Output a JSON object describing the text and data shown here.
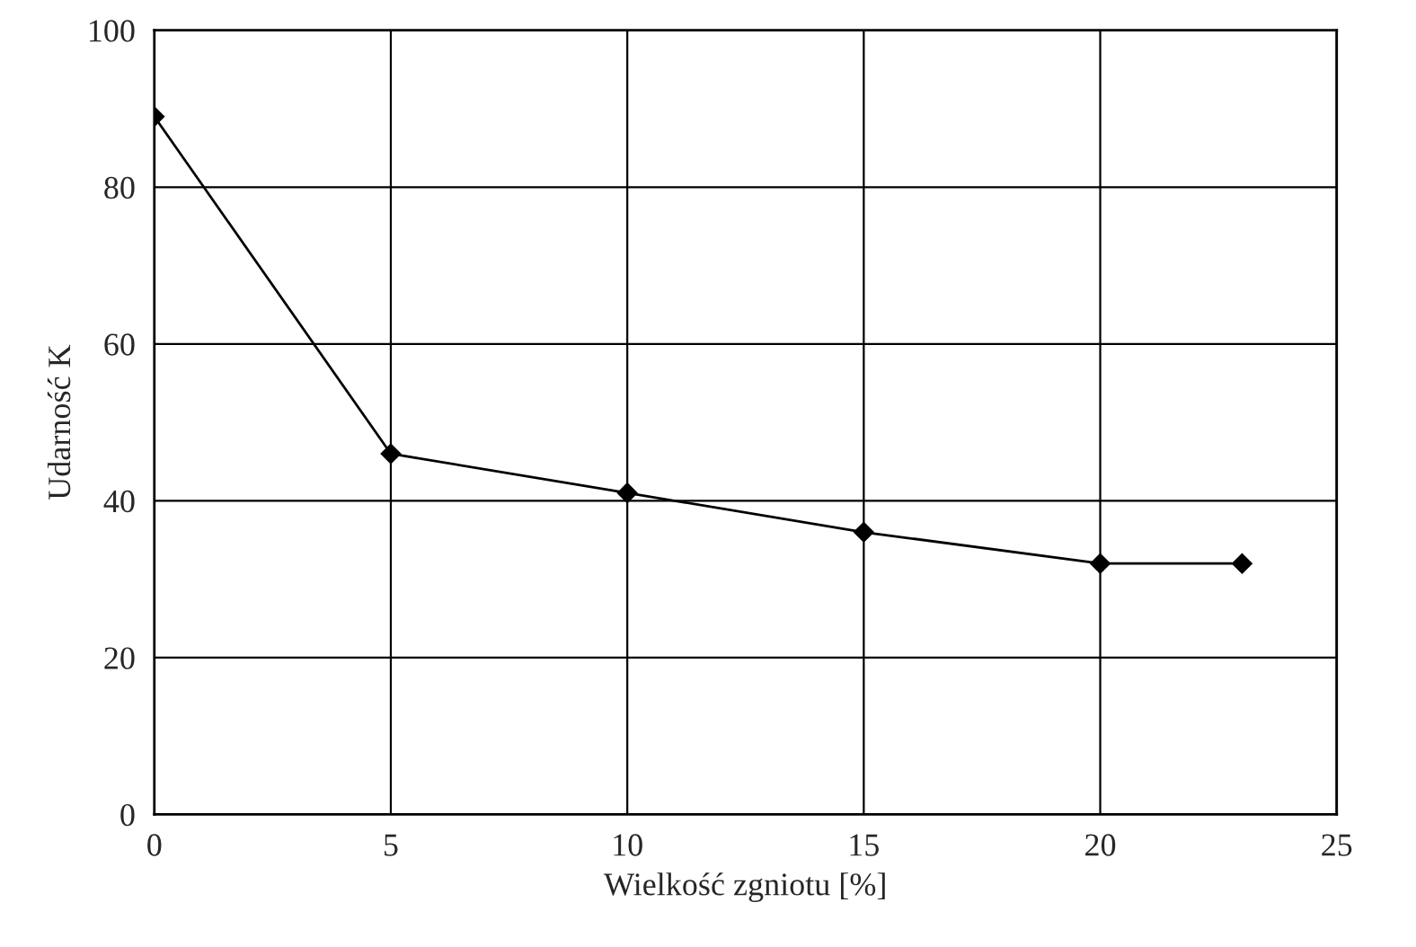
{
  "chart_data": {
    "type": "line",
    "xlabel": "Wielkość zgniotu [%]",
    "ylabel": "Udarność K",
    "x": [
      0,
      5,
      10,
      15,
      20,
      23
    ],
    "series": [
      {
        "color": "#000000",
        "values": [
          89,
          46,
          41,
          36,
          32,
          32
        ]
      }
    ],
    "xlim": [
      0,
      25
    ],
    "xticks": [
      0,
      5,
      10,
      15,
      20,
      25
    ],
    "ylim": [
      0,
      100
    ],
    "yticks": [
      0,
      20,
      40,
      60,
      80,
      100
    ],
    "grid": true,
    "marker": "diamond",
    "line_style": "solid"
  }
}
